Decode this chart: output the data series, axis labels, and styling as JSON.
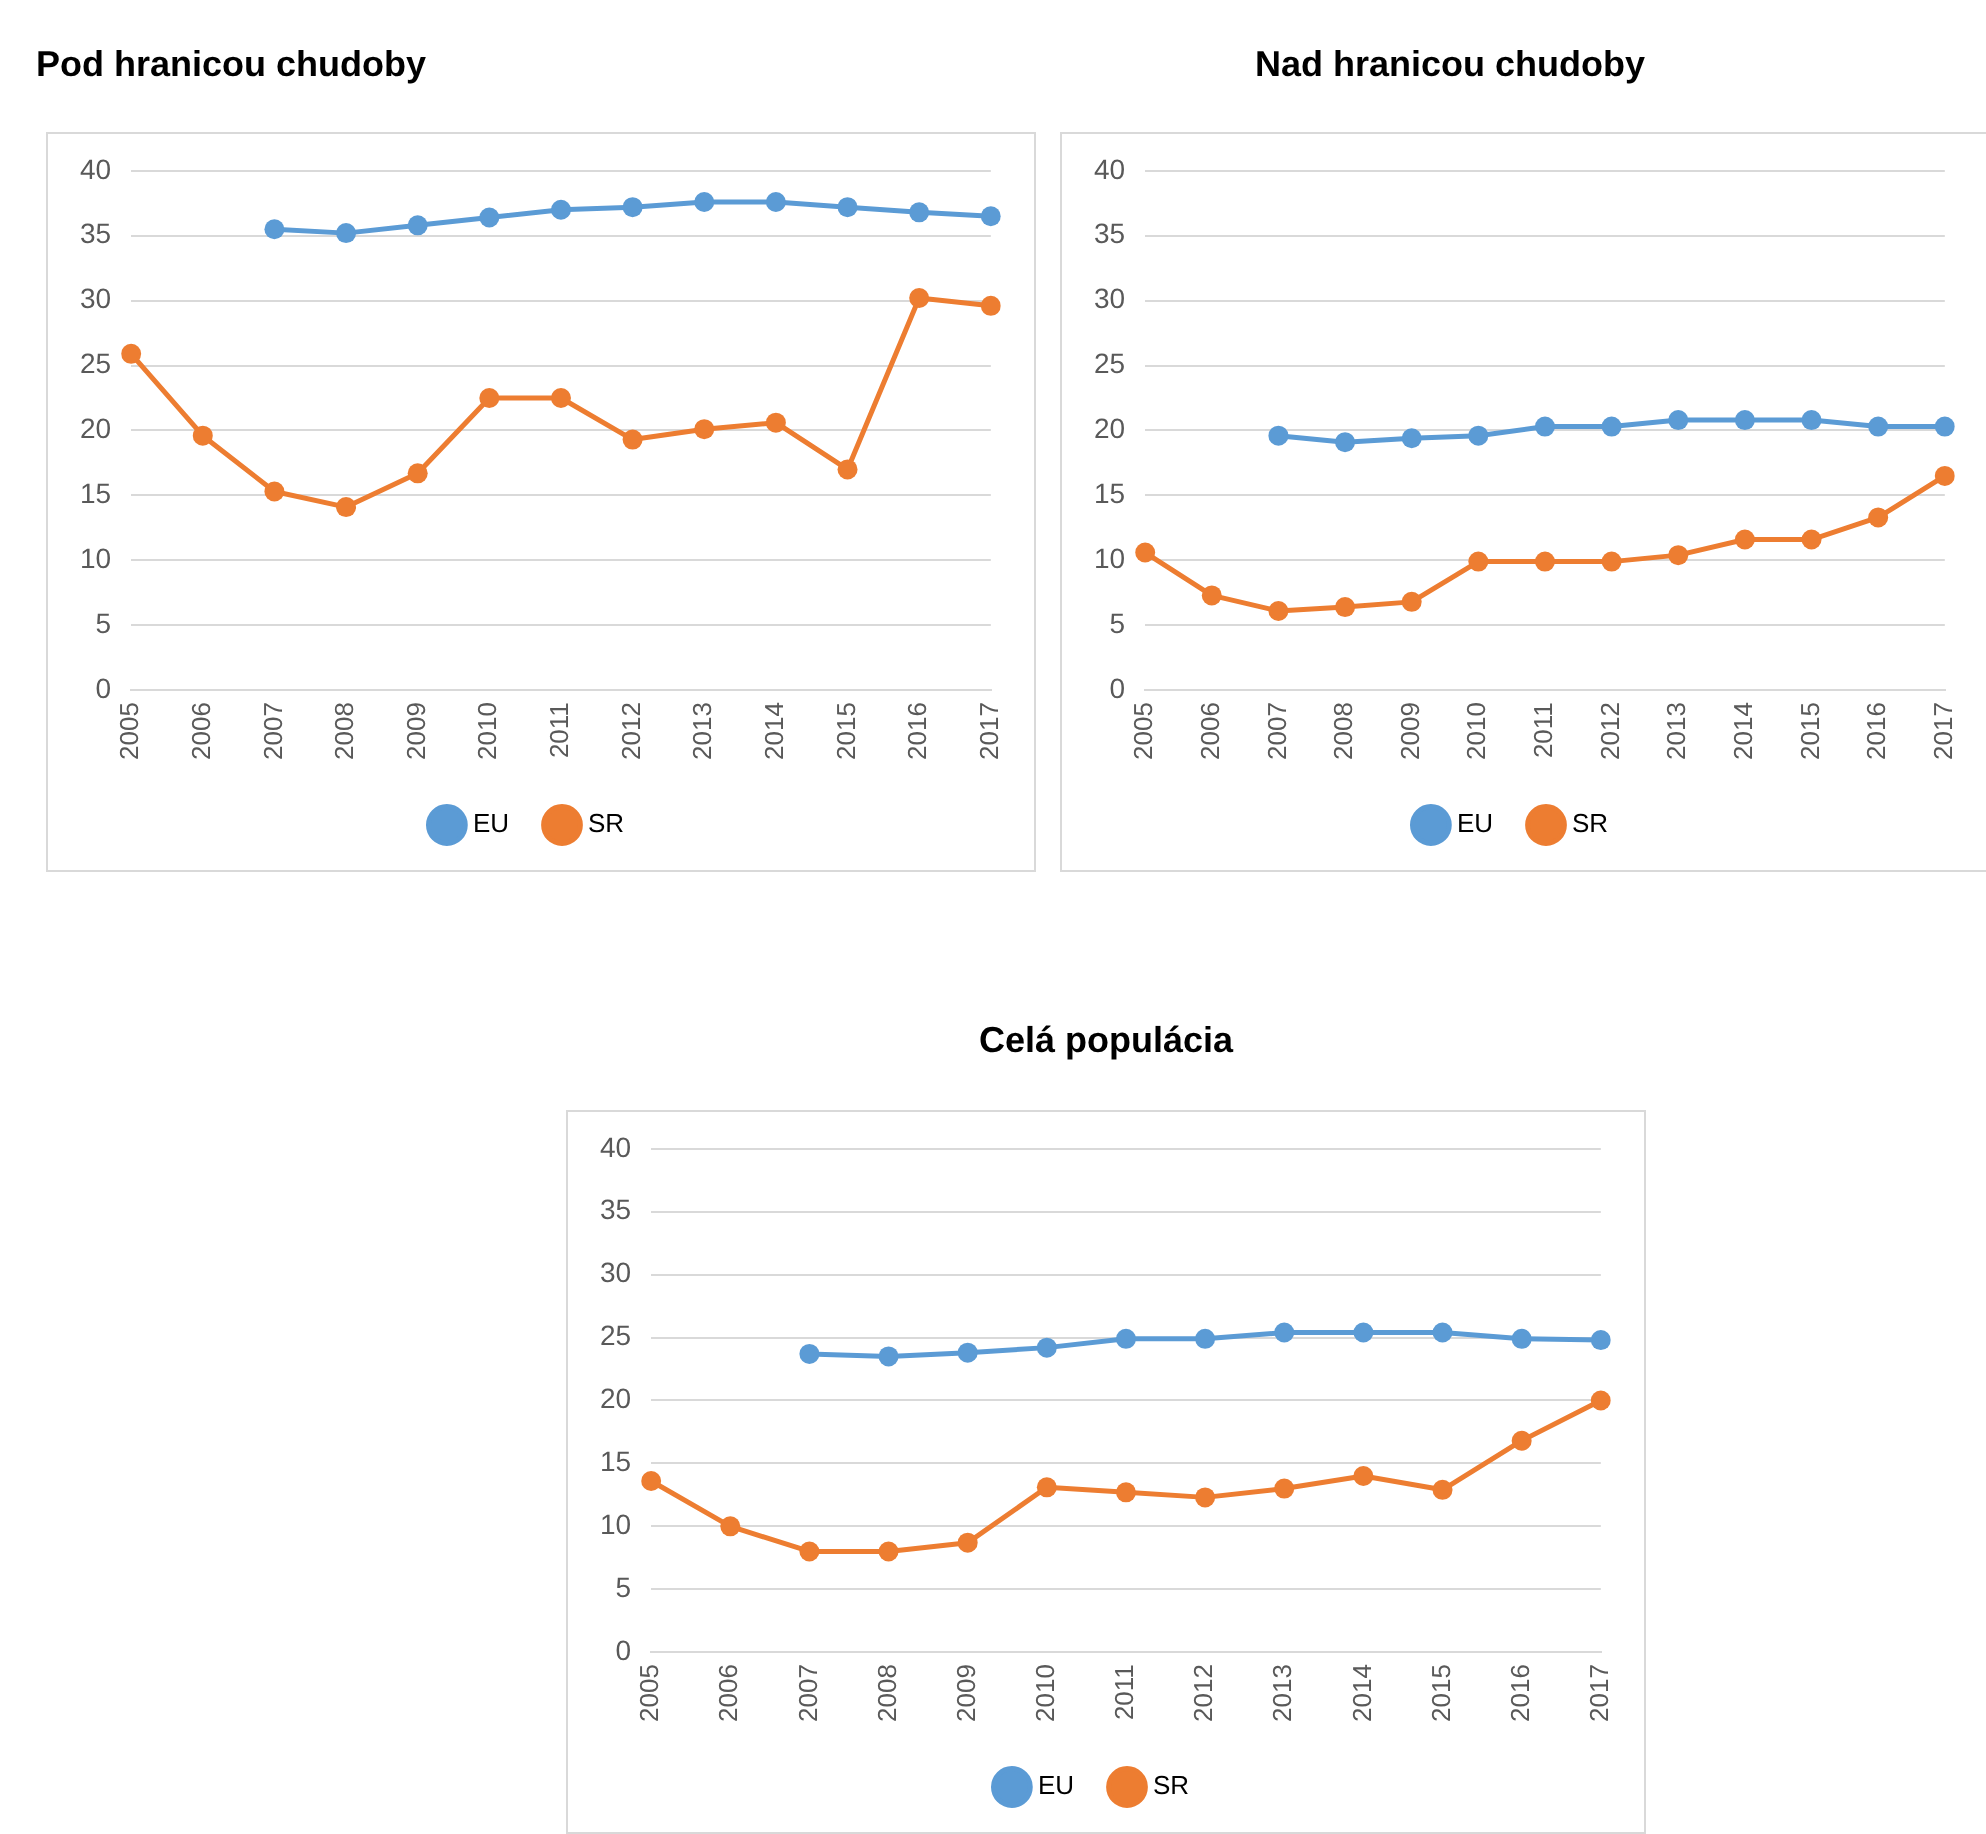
{
  "chart_data": [
    {
      "type": "line",
      "title": "Pod hranicou chudoby",
      "categories": [
        "2005",
        "2006",
        "2007",
        "2008",
        "2009",
        "2010",
        "2011",
        "2012",
        "2013",
        "2014",
        "2015",
        "2016",
        "2017"
      ],
      "series": [
        {
          "name": "EU",
          "color": "#5b9bd5",
          "values": [
            null,
            null,
            35.5,
            35.2,
            35.8,
            36.4,
            37.0,
            37.2,
            37.6,
            37.6,
            37.2,
            36.8,
            36.5
          ]
        },
        {
          "name": "SR",
          "color": "#ed7d31",
          "values": [
            25.9,
            19.6,
            15.3,
            14.1,
            16.7,
            22.5,
            22.5,
            19.3,
            20.1,
            20.6,
            17.0,
            30.2,
            29.6
          ]
        }
      ],
      "ylim": [
        0,
        40
      ],
      "yticks": [
        0,
        5,
        10,
        15,
        20,
        25,
        30,
        35,
        40
      ],
      "grid": "y",
      "legend": "bottom",
      "marker": "circle",
      "line_style": "solid"
    },
    {
      "type": "line",
      "title": "Nad hranicou chudoby",
      "categories": [
        "2005",
        "2006",
        "2007",
        "2008",
        "2009",
        "2010",
        "2011",
        "2012",
        "2013",
        "2014",
        "2015",
        "2016",
        "2017"
      ],
      "series": [
        {
          "name": "EU",
          "color": "#5b9bd5",
          "values": [
            null,
            null,
            19.6,
            19.1,
            19.4,
            19.6,
            20.3,
            20.3,
            20.8,
            20.8,
            20.8,
            20.3,
            20.3
          ]
        },
        {
          "name": "SR",
          "color": "#ed7d31",
          "values": [
            10.6,
            7.3,
            6.1,
            6.4,
            6.8,
            9.9,
            9.9,
            9.9,
            10.4,
            11.6,
            11.6,
            13.3,
            16.5
          ]
        }
      ],
      "ylim": [
        0,
        40
      ],
      "yticks": [
        0,
        5,
        10,
        15,
        20,
        25,
        30,
        35,
        40
      ],
      "grid": "y",
      "legend": "bottom",
      "marker": "circle",
      "line_style": "solid"
    },
    {
      "type": "line",
      "title": "Celá populácia",
      "categories": [
        "2005",
        "2006",
        "2007",
        "2008",
        "2009",
        "2010",
        "2011",
        "2012",
        "2013",
        "2014",
        "2015",
        "2016",
        "2017"
      ],
      "series": [
        {
          "name": "EU",
          "color": "#5b9bd5",
          "values": [
            null,
            null,
            23.7,
            23.5,
            23.8,
            24.2,
            24.9,
            24.9,
            25.4,
            25.4,
            25.4,
            24.9,
            24.8
          ]
        },
        {
          "name": "SR",
          "color": "#ed7d31",
          "values": [
            13.6,
            10.0,
            8.0,
            8.0,
            8.7,
            13.1,
            12.7,
            12.3,
            13.0,
            14.0,
            12.9,
            16.8,
            20.0
          ]
        }
      ],
      "ylim": [
        0,
        40
      ],
      "yticks": [
        0,
        5,
        10,
        15,
        20,
        25,
        30,
        35,
        40
      ],
      "grid": "y",
      "legend": "bottom",
      "marker": "circle",
      "line_style": "solid"
    }
  ]
}
